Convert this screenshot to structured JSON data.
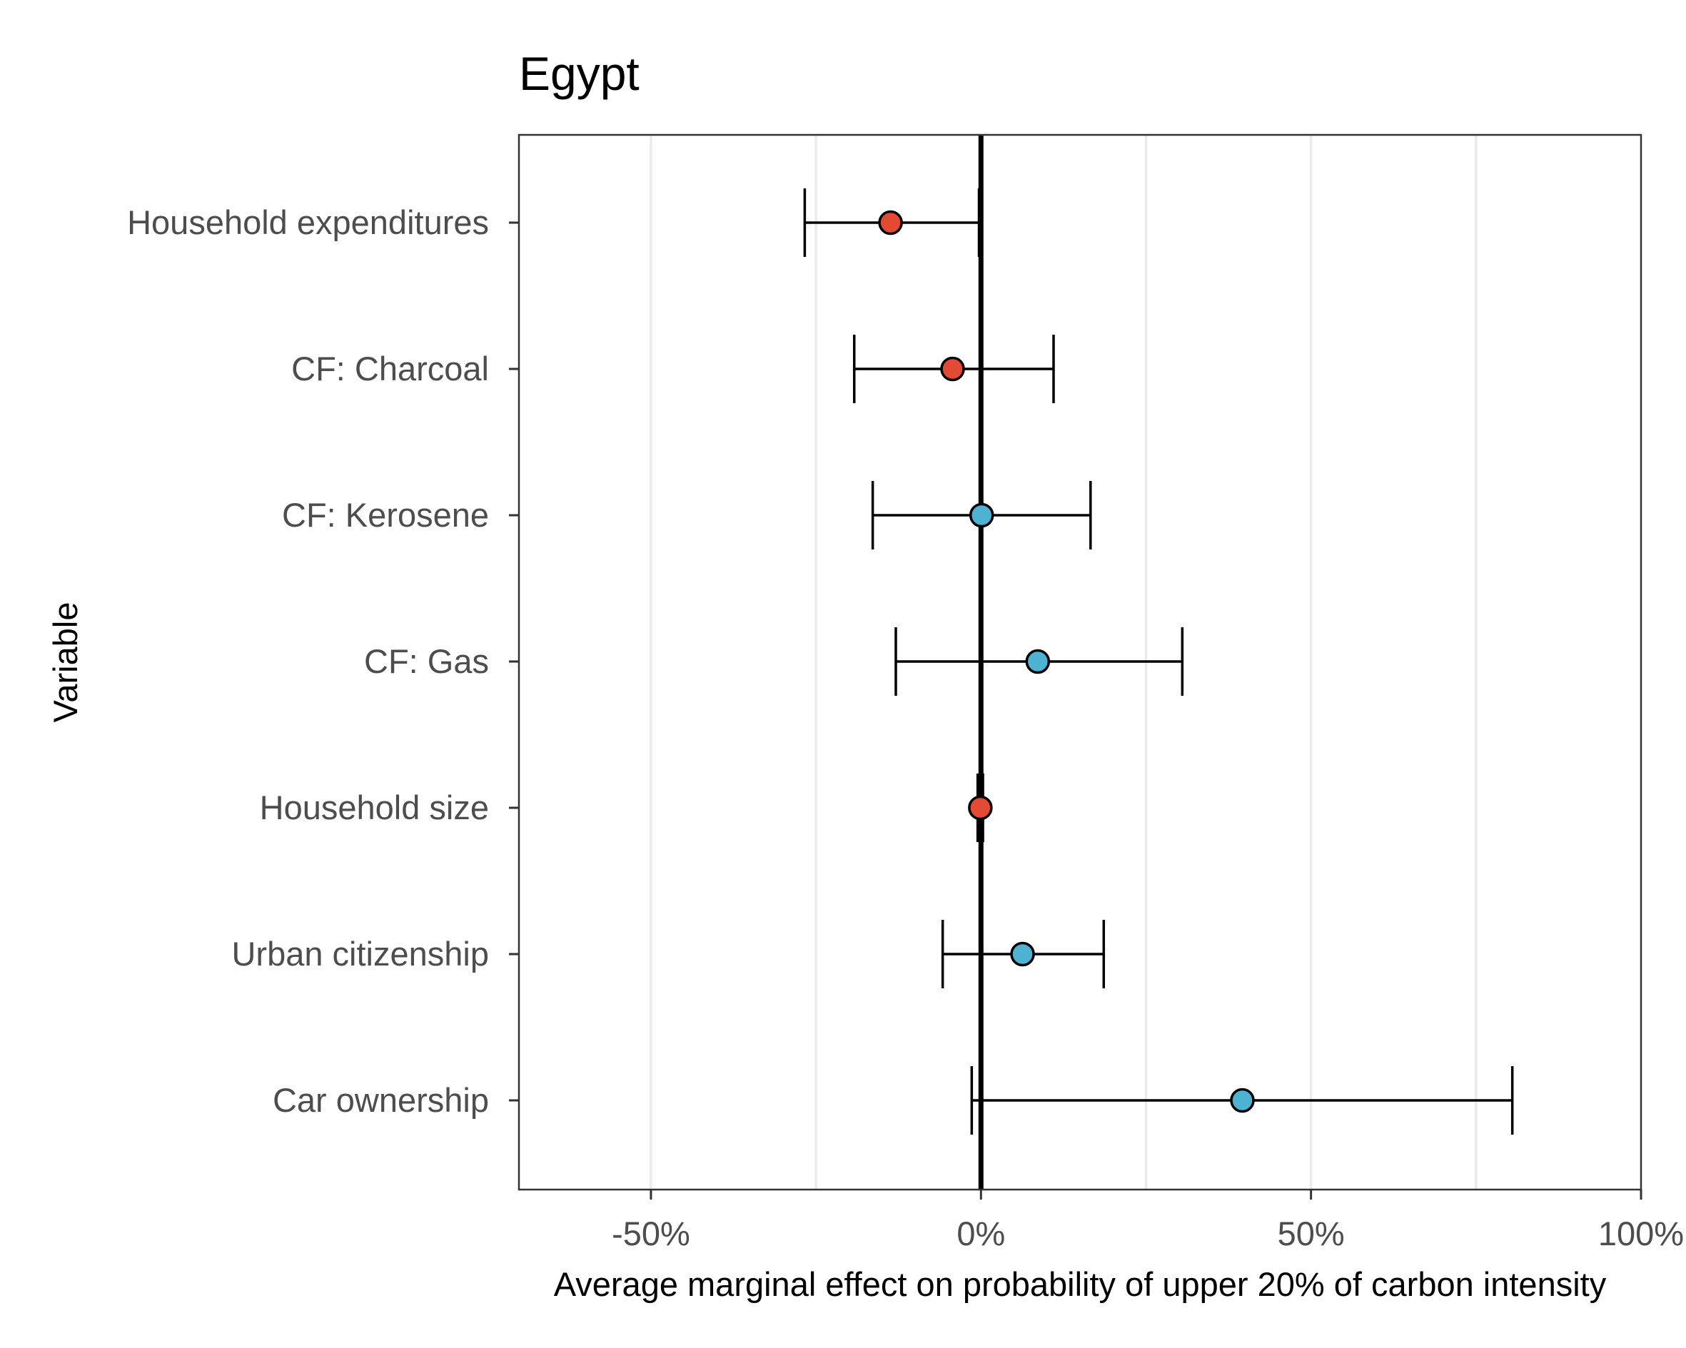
{
  "chart_data": {
    "type": "scatter",
    "subtype": "coefficient-plot",
    "title": "Egypt",
    "xlabel": "Average marginal effect on probability of upper 20% of carbon intensity",
    "ylabel": "Variable",
    "xlim": [
      -70,
      100
    ],
    "x_ticks": [
      -50,
      0,
      50,
      100
    ],
    "x_tick_labels": [
      "-50%",
      "0%",
      "50%",
      "100%"
    ],
    "x_minor_gridlines": [
      -25,
      25,
      75
    ],
    "reference_line": 0,
    "grid": true,
    "legend": "none",
    "colors": {
      "negative": "#e34a33",
      "positive": "#4eb3d3",
      "stroke": "#000000"
    },
    "points": [
      {
        "variable": "Household expenditures",
        "estimate": -13.7,
        "lower": -26.7,
        "upper": -0.3,
        "sign": "negative"
      },
      {
        "variable": "CF: Charcoal",
        "estimate": -4.3,
        "lower": -19.2,
        "upper": 11.0,
        "sign": "negative"
      },
      {
        "variable": "CF: Kerosene",
        "estimate": 0.1,
        "lower": -16.4,
        "upper": 16.6,
        "sign": "positive"
      },
      {
        "variable": "CF: Gas",
        "estimate": 8.6,
        "lower": -12.9,
        "upper": 30.5,
        "sign": "positive"
      },
      {
        "variable": "Household size",
        "estimate": -0.1,
        "lower": -0.5,
        "upper": 0.3,
        "sign": "negative"
      },
      {
        "variable": "Urban citizenship",
        "estimate": 6.3,
        "lower": -5.8,
        "upper": 18.6,
        "sign": "positive"
      },
      {
        "variable": "Car ownership",
        "estimate": 39.6,
        "lower": -1.4,
        "upper": 80.5,
        "sign": "positive"
      }
    ]
  }
}
